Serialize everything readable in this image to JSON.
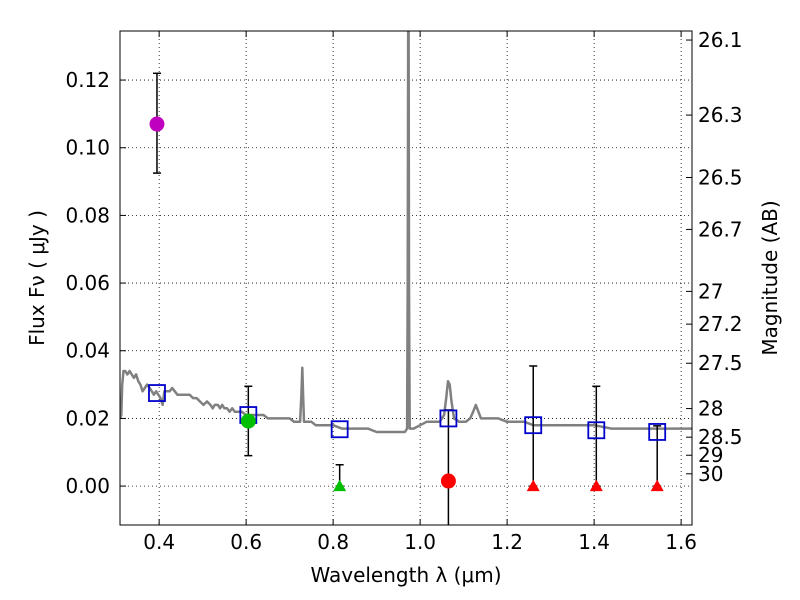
{
  "chart_data": {
    "type": "scatter",
    "xlabel": "Wavelength  λ (μm)",
    "ylabel": "Flux  Fν  ( μJy )",
    "ylabel_right": "Magnitude (AB)",
    "xlim": [
      0.31,
      1.625
    ],
    "ylim": [
      -0.0115,
      0.1345
    ],
    "grid": true,
    "x_ticks": [
      0.4,
      0.6,
      0.8,
      1.0,
      1.2,
      1.4,
      1.6
    ],
    "x_tick_labels": [
      "0.4",
      "0.6",
      "0.8",
      "1.0",
      "1.2",
      "1.4",
      "1.6"
    ],
    "y_ticks": [
      0.0,
      0.02,
      0.04,
      0.06,
      0.08,
      0.1,
      0.12
    ],
    "y_tick_labels": [
      "0.00",
      "0.02",
      "0.04",
      "0.06",
      "0.08",
      "0.10",
      "0.12"
    ],
    "mag_ticks": [
      26.1,
      26.3,
      26.5,
      26.7,
      27,
      27.2,
      27.5,
      28,
      28.5,
      29,
      30
    ],
    "mag_tick_labels": [
      "26.1",
      "26.3",
      "26.5",
      "26.7",
      "27",
      "27.2",
      "27.5",
      "28",
      "28.5",
      "29",
      "30"
    ],
    "model_spectrum": {
      "color": "#808080",
      "points": [
        [
          0.31,
          0.02
        ],
        [
          0.313,
          0.021
        ],
        [
          0.315,
          0.03
        ],
        [
          0.318,
          0.034
        ],
        [
          0.322,
          0.034
        ],
        [
          0.327,
          0.033
        ],
        [
          0.332,
          0.034
        ],
        [
          0.337,
          0.033
        ],
        [
          0.342,
          0.032
        ],
        [
          0.347,
          0.033
        ],
        [
          0.352,
          0.031
        ],
        [
          0.357,
          0.03
        ],
        [
          0.362,
          0.028
        ],
        [
          0.367,
          0.029
        ],
        [
          0.372,
          0.03
        ],
        [
          0.378,
          0.029
        ],
        [
          0.383,
          0.028
        ],
        [
          0.388,
          0.027
        ],
        [
          0.393,
          0.028
        ],
        [
          0.398,
          0.027
        ],
        [
          0.403,
          0.026
        ],
        [
          0.408,
          0.024
        ],
        [
          0.412,
          0.028
        ],
        [
          0.418,
          0.028
        ],
        [
          0.424,
          0.028
        ],
        [
          0.43,
          0.029
        ],
        [
          0.436,
          0.028
        ],
        [
          0.442,
          0.027
        ],
        [
          0.448,
          0.027
        ],
        [
          0.455,
          0.027
        ],
        [
          0.462,
          0.027
        ],
        [
          0.47,
          0.027
        ],
        [
          0.478,
          0.026
        ],
        [
          0.486,
          0.026
        ],
        [
          0.494,
          0.025
        ],
        [
          0.502,
          0.024
        ],
        [
          0.51,
          0.025
        ],
        [
          0.518,
          0.024
        ],
        [
          0.523,
          0.023
        ],
        [
          0.528,
          0.024
        ],
        [
          0.535,
          0.024
        ],
        [
          0.54,
          0.023
        ],
        [
          0.545,
          0.024
        ],
        [
          0.55,
          0.023
        ],
        [
          0.556,
          0.023
        ],
        [
          0.562,
          0.022
        ],
        [
          0.568,
          0.023
        ],
        [
          0.574,
          0.022
        ],
        [
          0.58,
          0.022
        ],
        [
          0.59,
          0.022
        ],
        [
          0.6,
          0.021
        ],
        [
          0.61,
          0.021
        ],
        [
          0.62,
          0.021
        ],
        [
          0.63,
          0.021
        ],
        [
          0.64,
          0.021
        ],
        [
          0.65,
          0.02
        ],
        [
          0.66,
          0.02
        ],
        [
          0.67,
          0.02
        ],
        [
          0.68,
          0.02
        ],
        [
          0.69,
          0.02
        ],
        [
          0.7,
          0.02
        ],
        [
          0.71,
          0.019
        ],
        [
          0.72,
          0.019
        ],
        [
          0.724,
          0.019
        ],
        [
          0.727,
          0.027
        ],
        [
          0.729,
          0.035
        ],
        [
          0.731,
          0.027
        ],
        [
          0.733,
          0.019
        ],
        [
          0.74,
          0.019
        ],
        [
          0.75,
          0.019
        ],
        [
          0.76,
          0.018
        ],
        [
          0.78,
          0.018
        ],
        [
          0.8,
          0.018
        ],
        [
          0.82,
          0.017
        ],
        [
          0.84,
          0.017
        ],
        [
          0.86,
          0.017
        ],
        [
          0.88,
          0.017
        ],
        [
          0.9,
          0.016
        ],
        [
          0.92,
          0.016
        ],
        [
          0.94,
          0.016
        ],
        [
          0.955,
          0.016
        ],
        [
          0.965,
          0.016
        ],
        [
          0.97,
          0.017
        ],
        [
          0.9715,
          0.06
        ],
        [
          0.9725,
          0.14
        ],
        [
          0.9735,
          0.14
        ],
        [
          0.9745,
          0.06
        ],
        [
          0.976,
          0.017
        ],
        [
          0.985,
          0.017
        ],
        [
          1.0,
          0.018
        ],
        [
          1.015,
          0.019
        ],
        [
          1.03,
          0.019
        ],
        [
          1.045,
          0.019
        ],
        [
          1.055,
          0.021
        ],
        [
          1.06,
          0.026
        ],
        [
          1.064,
          0.031
        ],
        [
          1.068,
          0.03
        ],
        [
          1.072,
          0.025
        ],
        [
          1.078,
          0.02
        ],
        [
          1.09,
          0.019
        ],
        [
          1.105,
          0.019
        ],
        [
          1.115,
          0.02
        ],
        [
          1.122,
          0.022
        ],
        [
          1.128,
          0.024
        ],
        [
          1.134,
          0.022
        ],
        [
          1.14,
          0.02
        ],
        [
          1.16,
          0.02
        ],
        [
          1.18,
          0.02
        ],
        [
          1.2,
          0.019
        ],
        [
          1.22,
          0.019
        ],
        [
          1.24,
          0.019
        ],
        [
          1.26,
          0.018
        ],
        [
          1.28,
          0.018
        ],
        [
          1.3,
          0.018
        ],
        [
          1.33,
          0.018
        ],
        [
          1.36,
          0.018
        ],
        [
          1.4,
          0.018
        ],
        [
          1.44,
          0.017
        ],
        [
          1.48,
          0.017
        ],
        [
          1.52,
          0.017
        ],
        [
          1.56,
          0.017
        ],
        [
          1.6,
          0.017
        ],
        [
          1.625,
          0.017
        ]
      ]
    },
    "model_photometry": {
      "marker": "open-square",
      "color": "#0000cc",
      "points": [
        {
          "x": 0.395,
          "y": 0.0275
        },
        {
          "x": 0.605,
          "y": 0.021
        },
        {
          "x": 0.815,
          "y": 0.0168
        },
        {
          "x": 1.065,
          "y": 0.02
        },
        {
          "x": 1.26,
          "y": 0.018
        },
        {
          "x": 1.405,
          "y": 0.0165
        },
        {
          "x": 1.545,
          "y": 0.016
        }
      ]
    },
    "observed": [
      {
        "x": 0.395,
        "y": 0.107,
        "yerr_low": 0.0925,
        "yerr_high": 0.122,
        "marker": "circle",
        "color": "#bf00bf"
      },
      {
        "x": 0.605,
        "y": 0.0192,
        "yerr_low": 0.009,
        "yerr_high": 0.0295,
        "marker": "circle",
        "color": "#00bf00"
      },
      {
        "x": 0.815,
        "y": 0.0,
        "yerr_low": 0.0,
        "yerr_high": 0.0063,
        "marker": "triangle",
        "color": "#00bf00"
      },
      {
        "x": 1.065,
        "y": 0.0015,
        "yerr_low": -0.0115,
        "yerr_high": 0.0225,
        "marker": "circle",
        "color": "#ff0000"
      },
      {
        "x": 1.26,
        "y": 0.0,
        "yerr_low": 0.0,
        "yerr_high": 0.0355,
        "marker": "triangle",
        "color": "#ff0000"
      },
      {
        "x": 1.405,
        "y": 0.0,
        "yerr_low": 0.0,
        "yerr_high": 0.0295,
        "marker": "triangle",
        "color": "#ff0000"
      },
      {
        "x": 1.545,
        "y": 0.0,
        "yerr_low": 0.0,
        "yerr_high": 0.0178,
        "marker": "triangle",
        "color": "#ff0000"
      }
    ]
  }
}
